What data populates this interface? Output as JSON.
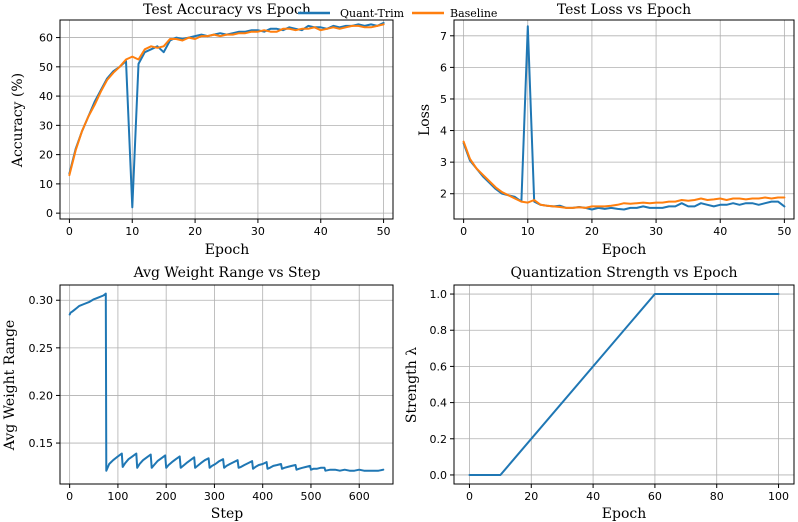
{
  "colors": {
    "quant": "#1f77b4",
    "baseline": "#ff7f0e"
  },
  "legend": {
    "quant": "Quant-Trim",
    "baseline": "Baseline"
  },
  "chart_data": [
    {
      "type": "line",
      "title": "Test Accuracy vs Epoch",
      "xlabel": "Epoch",
      "ylabel": "Accuracy (%)",
      "xlim": [
        -1.5,
        51.5
      ],
      "ylim": [
        -2,
        66
      ],
      "xticks": [
        0,
        10,
        20,
        30,
        40,
        50
      ],
      "yticks": [
        0,
        10,
        20,
        30,
        40,
        50,
        60
      ],
      "series": [
        {
          "name": "Quant-Trim",
          "color": "#1f77b4",
          "x": [
            0,
            1,
            2,
            3,
            4,
            5,
            6,
            7,
            8,
            9,
            10,
            11,
            12,
            13,
            14,
            15,
            16,
            17,
            18,
            19,
            20,
            21,
            22,
            23,
            24,
            25,
            26,
            27,
            28,
            29,
            30,
            31,
            32,
            33,
            34,
            35,
            36,
            37,
            38,
            39,
            40,
            41,
            42,
            43,
            44,
            45,
            46,
            47,
            48,
            49,
            50
          ],
          "y": [
            13.5,
            22,
            28,
            33,
            38,
            42,
            46,
            48.5,
            50,
            52,
            2,
            51,
            55,
            56,
            57,
            55,
            59,
            60,
            59.5,
            60,
            60.5,
            61,
            60.5,
            61,
            61.5,
            61,
            61.5,
            62,
            62,
            62.5,
            62.5,
            62,
            63,
            63,
            62.5,
            63.5,
            63,
            62.5,
            64,
            63.5,
            63.5,
            63,
            64,
            63.5,
            64,
            64,
            64.5,
            64,
            64.5,
            64,
            65
          ]
        },
        {
          "name": "Baseline",
          "color": "#ff7f0e",
          "x": [
            0,
            1,
            2,
            3,
            4,
            5,
            6,
            7,
            8,
            9,
            10,
            11,
            12,
            13,
            14,
            15,
            16,
            17,
            18,
            19,
            20,
            21,
            22,
            23,
            24,
            25,
            26,
            27,
            28,
            29,
            30,
            31,
            32,
            33,
            34,
            35,
            36,
            37,
            38,
            39,
            40,
            41,
            42,
            43,
            44,
            45,
            46,
            47,
            48,
            49,
            50
          ],
          "y": [
            13,
            21.5,
            28,
            33,
            37,
            41.5,
            45.5,
            48,
            50,
            52.5,
            53.5,
            52.5,
            56,
            57,
            56.5,
            57,
            59.5,
            59.5,
            59,
            60,
            59.5,
            60.5,
            60.5,
            61,
            60.5,
            61,
            61,
            61.5,
            61.5,
            62,
            62,
            62.5,
            62,
            62,
            63,
            63,
            62.5,
            63,
            63,
            63.5,
            62.5,
            63,
            63.5,
            63,
            63.5,
            64,
            64,
            63.5,
            63.5,
            64,
            64.5
          ]
        }
      ]
    },
    {
      "type": "line",
      "title": "Test Loss vs Epoch",
      "xlabel": "Epoch",
      "ylabel": "Loss",
      "xlim": [
        -1.5,
        51.5
      ],
      "ylim": [
        1.2,
        7.5
      ],
      "xticks": [
        0,
        10,
        20,
        30,
        40,
        50
      ],
      "yticks": [
        2,
        3,
        4,
        5,
        6,
        7
      ],
      "series": [
        {
          "name": "Quant-Trim",
          "color": "#1f77b4",
          "x": [
            0,
            1,
            2,
            3,
            4,
            5,
            6,
            7,
            8,
            9,
            10,
            11,
            12,
            13,
            14,
            15,
            16,
            17,
            18,
            19,
            20,
            21,
            22,
            23,
            24,
            25,
            26,
            27,
            28,
            29,
            30,
            31,
            32,
            33,
            34,
            35,
            36,
            37,
            38,
            39,
            40,
            41,
            42,
            43,
            44,
            45,
            46,
            47,
            48,
            49,
            50
          ],
          "y": [
            3.6,
            3.05,
            2.8,
            2.55,
            2.35,
            2.15,
            2.0,
            1.95,
            1.9,
            1.75,
            7.3,
            1.75,
            1.65,
            1.62,
            1.6,
            1.62,
            1.55,
            1.55,
            1.58,
            1.55,
            1.5,
            1.55,
            1.52,
            1.55,
            1.52,
            1.5,
            1.55,
            1.55,
            1.6,
            1.55,
            1.55,
            1.55,
            1.6,
            1.6,
            1.7,
            1.6,
            1.6,
            1.7,
            1.65,
            1.6,
            1.65,
            1.65,
            1.7,
            1.65,
            1.7,
            1.7,
            1.65,
            1.7,
            1.75,
            1.75,
            1.6
          ]
        },
        {
          "name": "Baseline",
          "color": "#ff7f0e",
          "x": [
            0,
            1,
            2,
            3,
            4,
            5,
            6,
            7,
            8,
            9,
            10,
            11,
            12,
            13,
            14,
            15,
            16,
            17,
            18,
            19,
            20,
            21,
            22,
            23,
            24,
            25,
            26,
            27,
            28,
            29,
            30,
            31,
            32,
            33,
            34,
            35,
            36,
            37,
            38,
            39,
            40,
            41,
            42,
            43,
            44,
            45,
            46,
            47,
            48,
            49,
            50
          ],
          "y": [
            3.65,
            3.1,
            2.8,
            2.6,
            2.4,
            2.2,
            2.05,
            1.95,
            1.85,
            1.75,
            1.72,
            1.8,
            1.65,
            1.62,
            1.6,
            1.58,
            1.55,
            1.55,
            1.57,
            1.55,
            1.6,
            1.6,
            1.6,
            1.62,
            1.65,
            1.7,
            1.68,
            1.7,
            1.72,
            1.7,
            1.72,
            1.72,
            1.75,
            1.75,
            1.8,
            1.78,
            1.8,
            1.85,
            1.8,
            1.82,
            1.85,
            1.8,
            1.85,
            1.85,
            1.82,
            1.85,
            1.85,
            1.88,
            1.85,
            1.88,
            1.88
          ]
        }
      ]
    },
    {
      "type": "line",
      "title": "Avg Weight Range vs Step",
      "xlabel": "Step",
      "ylabel": "Avg Weight Range",
      "xlim": [
        -20,
        670
      ],
      "ylim": [
        0.107,
        0.316
      ],
      "xticks": [
        0,
        100,
        200,
        300,
        400,
        500,
        600
      ],
      "yticks": [
        0.15,
        0.2,
        0.25,
        0.3
      ],
      "series": [
        {
          "name": "Avg Weight Range",
          "color": "#1f77b4",
          "x": [
            0,
            2,
            5,
            10,
            15,
            20,
            30,
            40,
            50,
            60,
            70,
            75,
            76,
            82,
            90,
            100,
            108,
            110,
            115,
            122,
            130,
            138,
            140,
            145,
            152,
            160,
            168,
            170,
            175,
            182,
            190,
            198,
            200,
            205,
            212,
            220,
            228,
            230,
            235,
            242,
            250,
            258,
            260,
            265,
            272,
            280,
            288,
            290,
            295,
            302,
            310,
            318,
            320,
            325,
            332,
            340,
            348,
            350,
            355,
            362,
            370,
            378,
            380,
            385,
            392,
            400,
            408,
            410,
            415,
            422,
            430,
            438,
            440,
            445,
            452,
            460,
            468,
            470,
            475,
            482,
            490,
            498,
            500,
            505,
            512,
            520,
            528,
            530,
            540,
            550,
            560,
            570,
            580,
            590,
            600,
            610,
            620,
            630,
            640,
            650
          ],
          "y": [
            0.285,
            0.287,
            0.288,
            0.29,
            0.292,
            0.294,
            0.296,
            0.298,
            0.301,
            0.303,
            0.305,
            0.307,
            0.121,
            0.128,
            0.132,
            0.136,
            0.139,
            0.125,
            0.129,
            0.133,
            0.136,
            0.139,
            0.124,
            0.128,
            0.132,
            0.135,
            0.138,
            0.124,
            0.127,
            0.131,
            0.134,
            0.137,
            0.124,
            0.127,
            0.13,
            0.133,
            0.136,
            0.124,
            0.126,
            0.129,
            0.132,
            0.135,
            0.124,
            0.126,
            0.129,
            0.132,
            0.134,
            0.124,
            0.126,
            0.128,
            0.131,
            0.133,
            0.124,
            0.126,
            0.128,
            0.13,
            0.132,
            0.124,
            0.125,
            0.127,
            0.129,
            0.131,
            0.123,
            0.125,
            0.127,
            0.128,
            0.13,
            0.123,
            0.124,
            0.126,
            0.127,
            0.128,
            0.123,
            0.124,
            0.125,
            0.126,
            0.127,
            0.122,
            0.123,
            0.124,
            0.125,
            0.126,
            0.122,
            0.123,
            0.123,
            0.124,
            0.124,
            0.121,
            0.122,
            0.122,
            0.121,
            0.122,
            0.121,
            0.121,
            0.122,
            0.121,
            0.121,
            0.121,
            0.121,
            0.122
          ]
        }
      ]
    },
    {
      "type": "line",
      "title": "Quantization Strength vs Epoch",
      "xlabel": "Epoch",
      "ylabel": "Strength λ",
      "xlim": [
        -5,
        105
      ],
      "ylim": [
        -0.05,
        1.05
      ],
      "xticks": [
        0,
        20,
        40,
        60,
        80,
        100
      ],
      "yticks": [
        0.0,
        0.2,
        0.4,
        0.6,
        0.8,
        1.0
      ],
      "series": [
        {
          "name": "Strength",
          "color": "#1f77b4",
          "x": [
            0,
            10,
            60,
            100
          ],
          "y": [
            0,
            0,
            1,
            1
          ]
        }
      ]
    }
  ]
}
